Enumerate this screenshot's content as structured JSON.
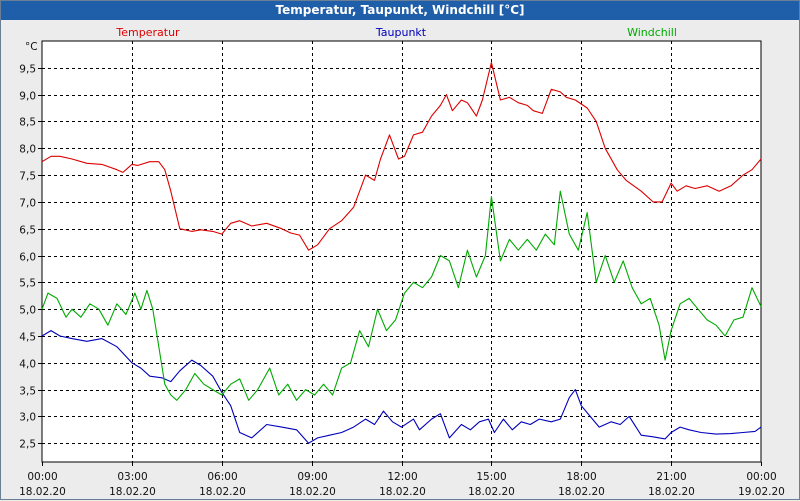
{
  "window": {
    "title": "Temperatur, Taupunkt, Windchill [°C]"
  },
  "chart_data": {
    "type": "line",
    "title": "Temperatur, Taupunkt, Windchill [°C]",
    "ylabel": "°C",
    "xlabel": "",
    "ylim": [
      2.15,
      10.0
    ],
    "xlim": [
      0,
      24
    ],
    "grid": true,
    "legend_position": "top",
    "y_ticks": [
      {
        "value": 2.5,
        "label": "2,5"
      },
      {
        "value": 3.0,
        "label": "3,0"
      },
      {
        "value": 3.5,
        "label": "3,5"
      },
      {
        "value": 4.0,
        "label": "4,0"
      },
      {
        "value": 4.5,
        "label": "4,5"
      },
      {
        "value": 5.0,
        "label": "5,0"
      },
      {
        "value": 5.5,
        "label": "5,5"
      },
      {
        "value": 6.0,
        "label": "6,0"
      },
      {
        "value": 6.5,
        "label": "6,5"
      },
      {
        "value": 7.0,
        "label": "7,0"
      },
      {
        "value": 7.5,
        "label": "7,5"
      },
      {
        "value": 8.0,
        "label": "8,0"
      },
      {
        "value": 8.5,
        "label": "8,5"
      },
      {
        "value": 9.0,
        "label": "9,0"
      },
      {
        "value": 9.5,
        "label": "9,5"
      }
    ],
    "x_ticks": [
      {
        "value": 0,
        "time": "00:00",
        "date": "18.02.20"
      },
      {
        "value": 3,
        "time": "03:00",
        "date": "18.02.20"
      },
      {
        "value": 6,
        "time": "06:00",
        "date": "18.02.20"
      },
      {
        "value": 9,
        "time": "09:00",
        "date": "18.02.20"
      },
      {
        "value": 12,
        "time": "12:00",
        "date": "18.02.20"
      },
      {
        "value": 15,
        "time": "15:00",
        "date": "18.02.20"
      },
      {
        "value": 18,
        "time": "18:00",
        "date": "18.02.20"
      },
      {
        "value": 21,
        "time": "21:00",
        "date": "18.02.20"
      },
      {
        "value": 24,
        "time": "00:00",
        "date": "19.02.20"
      }
    ],
    "series": [
      {
        "name": "Temperatur",
        "color": "#dd0000",
        "legend_anchor": "start",
        "x": [
          0,
          0.3,
          0.6,
          1,
          1.5,
          2,
          2.5,
          2.7,
          3,
          3.2,
          3.6,
          3.9,
          4.1,
          4.3,
          4.6,
          5,
          5.3,
          5.7,
          6,
          6.3,
          6.6,
          7,
          7.5,
          8,
          8.3,
          8.6,
          8.9,
          9.2,
          9.6,
          10,
          10.4,
          10.8,
          11.1,
          11.3,
          11.6,
          11.9,
          12.1,
          12.4,
          12.7,
          13,
          13.3,
          13.5,
          13.7,
          14,
          14.2,
          14.5,
          14.7,
          15,
          15.3,
          15.6,
          15.9,
          16.2,
          16.4,
          16.7,
          17,
          17.3,
          17.5,
          17.8,
          18.2,
          18.5,
          18.8,
          19.2,
          19.5,
          20,
          20.4,
          20.7,
          21,
          21.2,
          21.5,
          21.8,
          22.2,
          22.6,
          23,
          23.4,
          23.7,
          24
        ],
        "values": [
          7.75,
          7.85,
          7.85,
          7.8,
          7.72,
          7.7,
          7.6,
          7.55,
          7.7,
          7.68,
          7.75,
          7.75,
          7.6,
          7.2,
          6.5,
          6.45,
          6.48,
          6.45,
          6.4,
          6.6,
          6.65,
          6.55,
          6.6,
          6.5,
          6.42,
          6.38,
          6.1,
          6.2,
          6.5,
          6.65,
          6.9,
          7.5,
          7.4,
          7.8,
          8.25,
          7.8,
          7.85,
          8.25,
          8.3,
          8.6,
          8.8,
          9.0,
          8.7,
          8.9,
          8.85,
          8.6,
          8.9,
          9.6,
          8.9,
          8.95,
          8.85,
          8.8,
          8.7,
          8.65,
          9.1,
          9.05,
          8.95,
          8.9,
          8.75,
          8.5,
          8.0,
          7.6,
          7.4,
          7.2,
          7.0,
          7.0,
          7.35,
          7.2,
          7.3,
          7.25,
          7.3,
          7.2,
          7.3,
          7.5,
          7.6,
          7.8
        ]
      },
      {
        "name": "Taupunkt",
        "color": "#0000bb",
        "legend_anchor": "middle",
        "x": [
          0,
          0.3,
          0.6,
          1,
          1.5,
          2,
          2.5,
          3,
          3.3,
          3.6,
          4,
          4.3,
          4.6,
          5,
          5.3,
          5.7,
          6,
          6.3,
          6.6,
          7,
          7.5,
          8,
          8.5,
          8.9,
          9.2,
          9.6,
          10,
          10.4,
          10.8,
          11.1,
          11.4,
          11.7,
          12,
          12.4,
          12.6,
          13,
          13.3,
          13.6,
          14,
          14.3,
          14.6,
          14.9,
          15.1,
          15.4,
          15.7,
          16,
          16.3,
          16.6,
          17,
          17.3,
          17.6,
          17.8,
          18,
          18.3,
          18.6,
          19,
          19.3,
          19.6,
          20,
          20.4,
          20.8,
          21,
          21.3,
          21.6,
          22,
          22.5,
          23,
          23.4,
          23.8,
          24
        ],
        "values": [
          4.5,
          4.6,
          4.5,
          4.45,
          4.4,
          4.45,
          4.3,
          4.0,
          3.9,
          3.75,
          3.72,
          3.65,
          3.85,
          4.05,
          3.95,
          3.75,
          3.45,
          3.2,
          2.7,
          2.6,
          2.85,
          2.8,
          2.75,
          2.5,
          2.6,
          2.65,
          2.7,
          2.8,
          2.95,
          2.85,
          3.1,
          2.9,
          2.8,
          2.95,
          2.75,
          2.95,
          3.05,
          2.6,
          2.85,
          2.75,
          2.9,
          2.95,
          2.7,
          2.95,
          2.75,
          2.9,
          2.85,
          2.95,
          2.9,
          2.95,
          3.35,
          3.5,
          3.2,
          3.0,
          2.8,
          2.9,
          2.85,
          3.0,
          2.65,
          2.62,
          2.58,
          2.7,
          2.8,
          2.75,
          2.7,
          2.67,
          2.68,
          2.7,
          2.72,
          2.8
        ]
      },
      {
        "name": "Windchill",
        "color": "#00aa00",
        "legend_anchor": "end",
        "x": [
          0,
          0.2,
          0.5,
          0.8,
          1,
          1.3,
          1.6,
          1.9,
          2.2,
          2.5,
          2.8,
          3.1,
          3.3,
          3.5,
          3.7,
          3.9,
          4.1,
          4.3,
          4.5,
          4.8,
          5.1,
          5.4,
          5.7,
          6,
          6.3,
          6.6,
          6.9,
          7.2,
          7.6,
          7.9,
          8.2,
          8.5,
          8.8,
          9.1,
          9.4,
          9.7,
          10,
          10.3,
          10.6,
          10.9,
          11.2,
          11.5,
          11.8,
          12.1,
          12.4,
          12.7,
          13,
          13.3,
          13.6,
          13.9,
          14.2,
          14.5,
          14.8,
          15,
          15.3,
          15.6,
          15.9,
          16.2,
          16.5,
          16.8,
          17.1,
          17.3,
          17.6,
          17.9,
          18.2,
          18.5,
          18.8,
          19.1,
          19.4,
          19.7,
          20,
          20.3,
          20.6,
          20.8,
          21,
          21.3,
          21.6,
          21.9,
          22.2,
          22.5,
          22.8,
          23.1,
          23.4,
          23.7,
          24
        ],
        "values": [
          5.0,
          5.3,
          5.2,
          4.85,
          5.0,
          4.85,
          5.1,
          5.0,
          4.7,
          5.1,
          4.9,
          5.3,
          5.0,
          5.35,
          5.0,
          4.3,
          3.6,
          3.4,
          3.3,
          3.5,
          3.8,
          3.6,
          3.5,
          3.4,
          3.6,
          3.7,
          3.3,
          3.5,
          3.9,
          3.4,
          3.6,
          3.3,
          3.5,
          3.4,
          3.6,
          3.4,
          3.9,
          4.0,
          4.6,
          4.3,
          5.0,
          4.6,
          4.8,
          5.3,
          5.5,
          5.4,
          5.6,
          6.0,
          5.9,
          5.4,
          6.1,
          5.6,
          6.0,
          7.1,
          5.9,
          6.3,
          6.1,
          6.3,
          6.1,
          6.4,
          6.2,
          7.2,
          6.4,
          6.1,
          6.8,
          5.5,
          6.0,
          5.5,
          5.9,
          5.4,
          5.1,
          5.2,
          4.7,
          4.05,
          4.6,
          5.1,
          5.2,
          5.0,
          4.8,
          4.7,
          4.5,
          4.8,
          4.85,
          5.4,
          5.05
        ]
      }
    ]
  }
}
